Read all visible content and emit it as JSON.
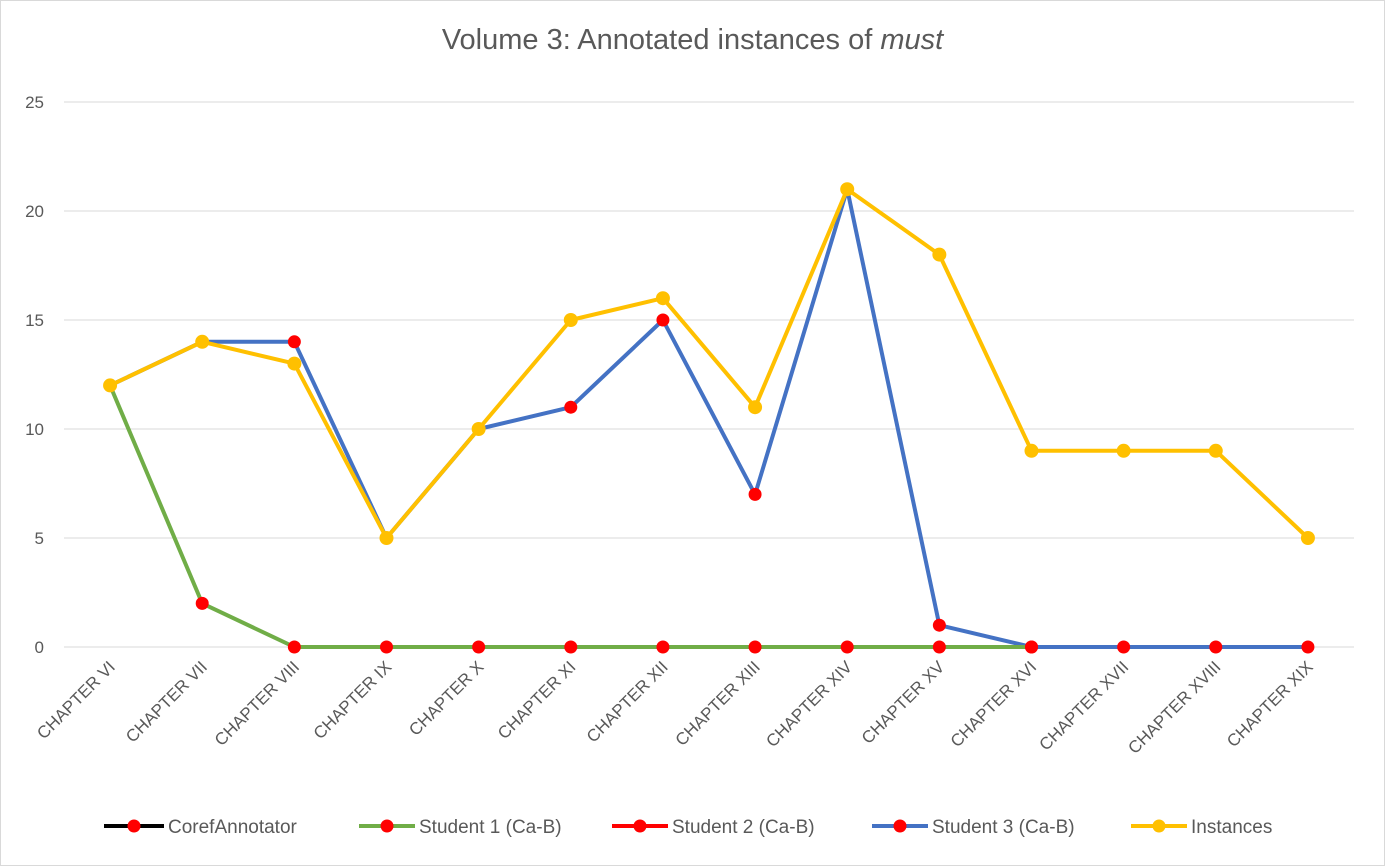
{
  "chart_data": {
    "type": "line",
    "title_prefix": "Volume 3: Annotated instances of ",
    "title_emphasis": "must",
    "categories": [
      "CHAPTER VI",
      "CHAPTER VII",
      "CHAPTER VIII",
      "CHAPTER IX",
      "CHAPTER X",
      "CHAPTER XI",
      "CHAPTER XII",
      "CHAPTER XIII",
      "CHAPTER XIV",
      "CHAPTER XV",
      "CHAPTER XVI",
      "CHAPTER XVII",
      "CHAPTER XVIII",
      "CHAPTER XIX"
    ],
    "ylim": [
      0,
      25
    ],
    "yticks": [
      0,
      5,
      10,
      15,
      20,
      25
    ],
    "grid": true,
    "legend_position": "bottom",
    "series": [
      {
        "name": "CorefAnnotator",
        "line_color": "#000000",
        "marker_color": "#ff0000",
        "values": [
          null,
          null,
          null,
          null,
          null,
          null,
          null,
          null,
          null,
          null,
          null,
          null,
          null,
          null
        ]
      },
      {
        "name": "Student 1 (Ca-B)",
        "line_color": "#70ad47",
        "marker_color": "#ff0000",
        "values": [
          12,
          2,
          0,
          0,
          0,
          0,
          0,
          0,
          0,
          0,
          0,
          null,
          null,
          null
        ]
      },
      {
        "name": "Student 2 (Ca-B)",
        "line_color": "#ff0000",
        "marker_color": "#ff0000",
        "values": [
          null,
          null,
          null,
          null,
          null,
          null,
          null,
          null,
          null,
          null,
          null,
          null,
          null,
          null
        ]
      },
      {
        "name": "Student 3 (Ca-B)",
        "line_color": "#4472c4",
        "marker_color": "#ff0000",
        "values": [
          12,
          14,
          14,
          5,
          10,
          11,
          15,
          7,
          21,
          1,
          0,
          0,
          0,
          0
        ]
      },
      {
        "name": "Instances",
        "line_color": "#ffc000",
        "marker_color": "#ffc000",
        "values": [
          12,
          14,
          13,
          5,
          10,
          15,
          16,
          11,
          21,
          18,
          9,
          9,
          9,
          5
        ]
      }
    ],
    "marker_overlay": {
      "color": "#ff0000",
      "values": [
        null,
        2,
        0,
        0,
        0,
        0,
        0,
        0,
        0,
        0,
        0,
        0,
        0,
        0
      ]
    },
    "red_markers_student3": [
      null,
      null,
      14,
      null,
      null,
      11,
      15,
      7,
      null,
      1,
      0,
      0,
      0,
      0
    ]
  }
}
